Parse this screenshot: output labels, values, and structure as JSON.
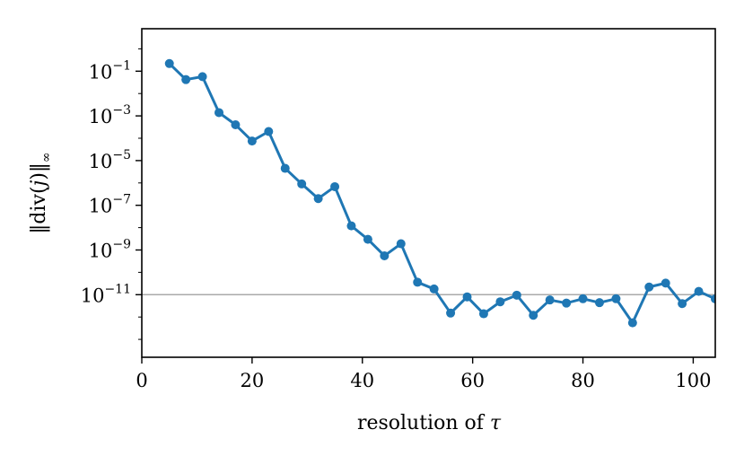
{
  "chart_data": {
    "type": "line",
    "xlabel": "resolution of τ",
    "xlabel_text": "resolution of ",
    "xlabel_symbol": "τ",
    "ylabel": "‖div(j)‖∞",
    "ylabel_parts": {
      "open": "‖div(",
      "var": "j",
      "close": ")‖",
      "sub": "∞"
    },
    "xlim": [
      0,
      104
    ],
    "ylim_log10": [
      -13.8,
      0.9
    ],
    "yscale": "log",
    "xticks": [
      {
        "value": 0,
        "label": "0"
      },
      {
        "value": 20,
        "label": "20"
      },
      {
        "value": 40,
        "label": "40"
      },
      {
        "value": 60,
        "label": "60"
      },
      {
        "value": 80,
        "label": "80"
      },
      {
        "value": 100,
        "label": "100"
      }
    ],
    "yticks": [
      {
        "exp": -1,
        "base": "10",
        "label": "−1"
      },
      {
        "exp": -3,
        "base": "10",
        "label": "−3"
      },
      {
        "exp": -5,
        "base": "10",
        "label": "−5"
      },
      {
        "exp": -7,
        "base": "10",
        "label": "−7"
      },
      {
        "exp": -9,
        "base": "10",
        "label": "−9"
      },
      {
        "exp": -11,
        "base": "10",
        "label": "−11"
      }
    ],
    "reference_line": {
      "value": 1e-11,
      "color": "#aaaaaa"
    },
    "series": [
      {
        "color": "#1f77b4",
        "x": [
          5,
          8,
          11,
          14,
          17,
          20,
          23,
          26,
          29,
          32,
          35,
          38,
          41,
          44,
          47,
          50,
          53,
          56,
          59,
          62,
          65,
          68,
          71,
          74,
          77,
          80,
          83,
          86,
          89,
          92,
          95,
          98,
          101,
          104
        ],
        "y": [
          0.22,
          0.042,
          0.057,
          0.0014,
          0.0004,
          7.5e-05,
          0.0002,
          4.5e-06,
          9e-07,
          2e-07,
          6.8e-07,
          1.2e-08,
          3e-09,
          5.5e-10,
          1.9e-09,
          3.6e-11,
          1.8e-11,
          1.5e-12,
          8e-12,
          1.4e-12,
          4.8e-12,
          9.5e-12,
          1.2e-12,
          5.8e-12,
          4.2e-12,
          6.6e-12,
          4.4e-12,
          6.6e-12,
          5.5e-13,
          2.2e-11,
          3.3e-11,
          4e-12,
          1.4e-11,
          6.5e-12
        ]
      }
    ]
  }
}
